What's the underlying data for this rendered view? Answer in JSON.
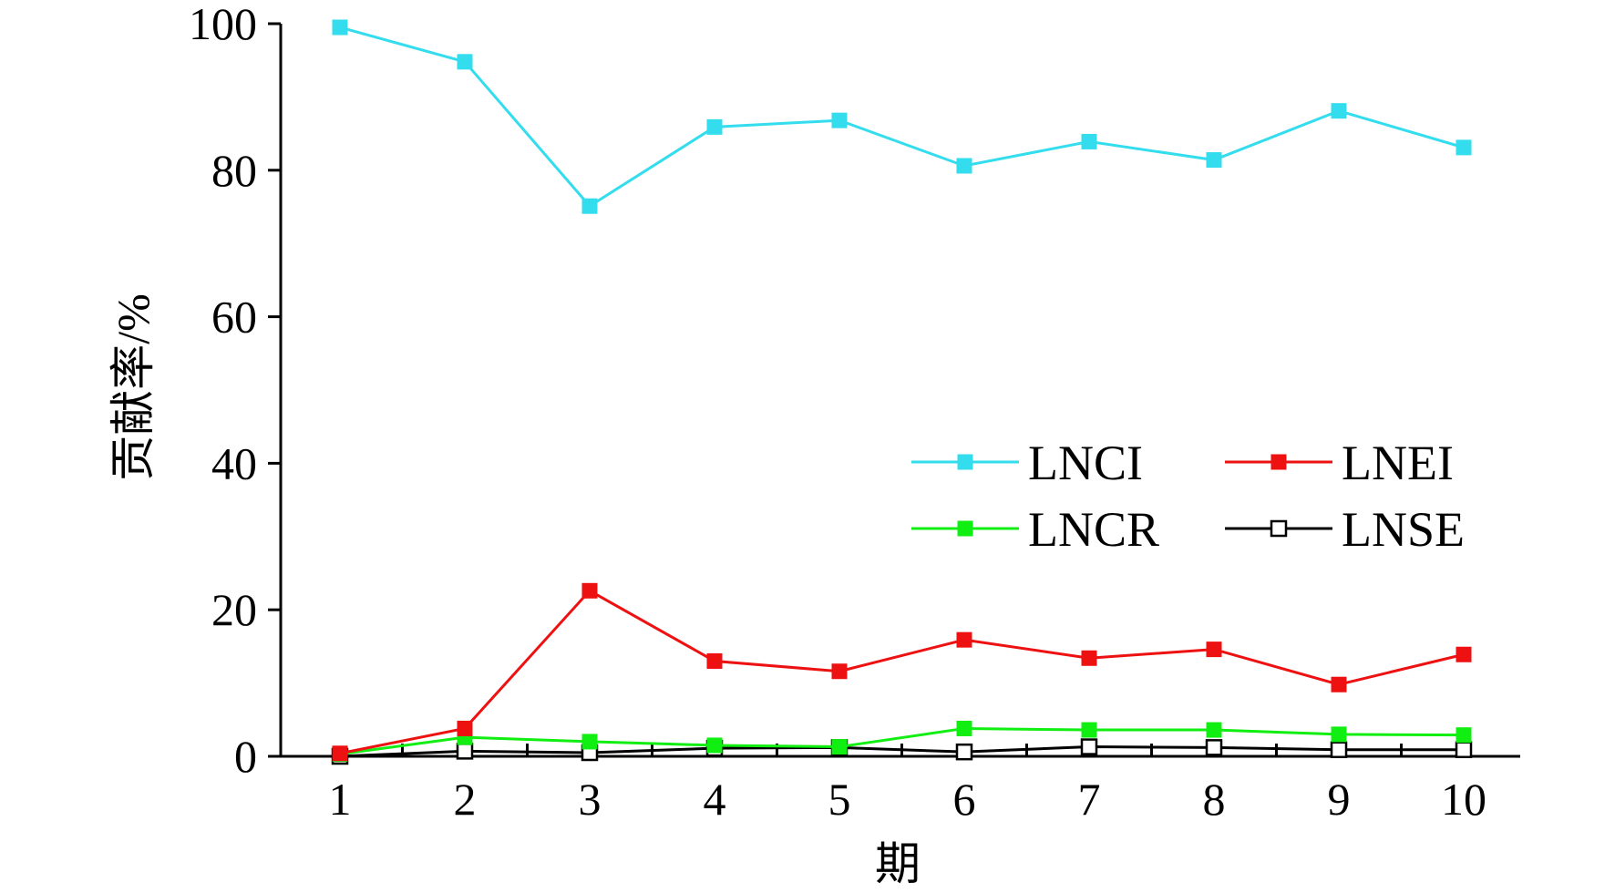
{
  "chart_data": {
    "type": "line",
    "title": "",
    "xlabel": "期",
    "ylabel": "贡献率/%",
    "categories": [
      "1",
      "2",
      "3",
      "4",
      "5",
      "6",
      "7",
      "8",
      "9",
      "10"
    ],
    "ylim": [
      0,
      100
    ],
    "yticks": [
      "0",
      "20",
      "40",
      "60",
      "80",
      "100"
    ],
    "grid": false,
    "legend_position": "center-right",
    "series": [
      {
        "name": "LNCI",
        "color": "#33ddee",
        "marker": "filled-square",
        "values": [
          99.5,
          94.8,
          75.1,
          85.9,
          86.8,
          80.6,
          83.9,
          81.4,
          88.1,
          83.1
        ]
      },
      {
        "name": "LNEI",
        "color": "#ee1111",
        "marker": "filled-square",
        "values": [
          0.4,
          3.8,
          22.6,
          13.0,
          11.6,
          15.9,
          13.4,
          14.6,
          9.8,
          13.9
        ]
      },
      {
        "name": "LNCR",
        "color": "#11ee11",
        "marker": "filled-square",
        "values": [
          0.3,
          2.6,
          2.0,
          1.5,
          1.3,
          3.8,
          3.6,
          3.6,
          3.0,
          2.9
        ]
      },
      {
        "name": "LNSE",
        "color": "#000000",
        "marker": "hollow-square",
        "values": [
          0.0,
          0.7,
          0.5,
          1.1,
          1.2,
          0.6,
          1.3,
          1.2,
          0.9,
          0.9
        ]
      }
    ]
  }
}
